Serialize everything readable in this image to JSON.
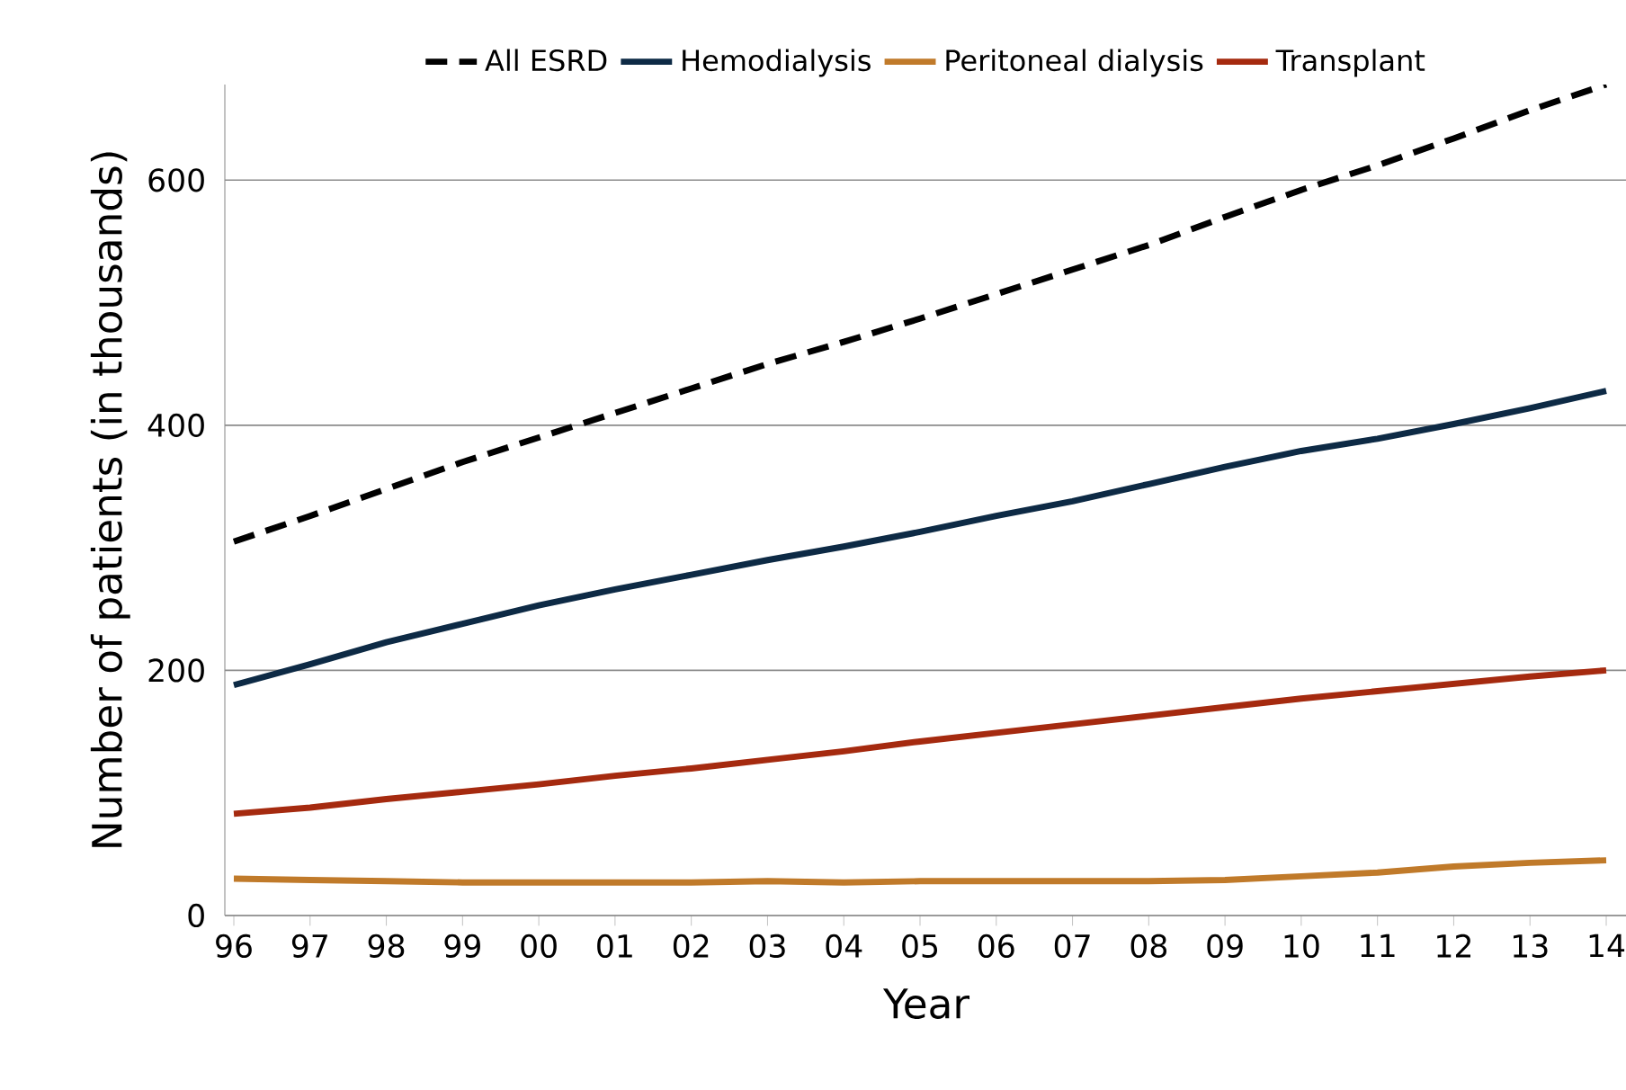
{
  "chart_data": {
    "type": "line",
    "xlabel": "Year",
    "ylabel": "Number of patients (in thousands)",
    "categories": [
      "96",
      "97",
      "98",
      "99",
      "00",
      "01",
      "02",
      "03",
      "04",
      "05",
      "06",
      "07",
      "08",
      "09",
      "10",
      "11",
      "12",
      "13",
      "14"
    ],
    "series": [
      {
        "name": "All ESRD",
        "color": "#000000",
        "line_style": "dashed",
        "values": [
          305,
          326,
          348,
          370,
          390,
          410,
          430,
          450,
          468,
          487,
          507,
          527,
          547,
          570,
          592,
          612,
          634,
          657,
          678
        ]
      },
      {
        "name": "Hemodialysis",
        "color": "#0d2a45",
        "values": [
          188,
          205,
          223,
          238,
          253,
          266,
          278,
          290,
          301,
          313,
          326,
          338,
          352,
          366,
          379,
          389,
          401,
          414,
          428
        ]
      },
      {
        "name": "Peritoneal dialysis",
        "color": "#c07a2a",
        "values": [
          30,
          29,
          28,
          27,
          27,
          27,
          27,
          28,
          27,
          28,
          28,
          28,
          28,
          29,
          32,
          35,
          40,
          43,
          45
        ]
      },
      {
        "name": "Transplant",
        "color": "#a52a0f",
        "values": [
          83,
          88,
          95,
          101,
          107,
          114,
          120,
          127,
          134,
          142,
          149,
          156,
          163,
          170,
          177,
          183,
          189,
          195,
          200
        ]
      }
    ],
    "ylim": [
      0,
      678
    ],
    "yticks": [
      0,
      200,
      400,
      600
    ],
    "grid": "y",
    "legend": "top"
  }
}
